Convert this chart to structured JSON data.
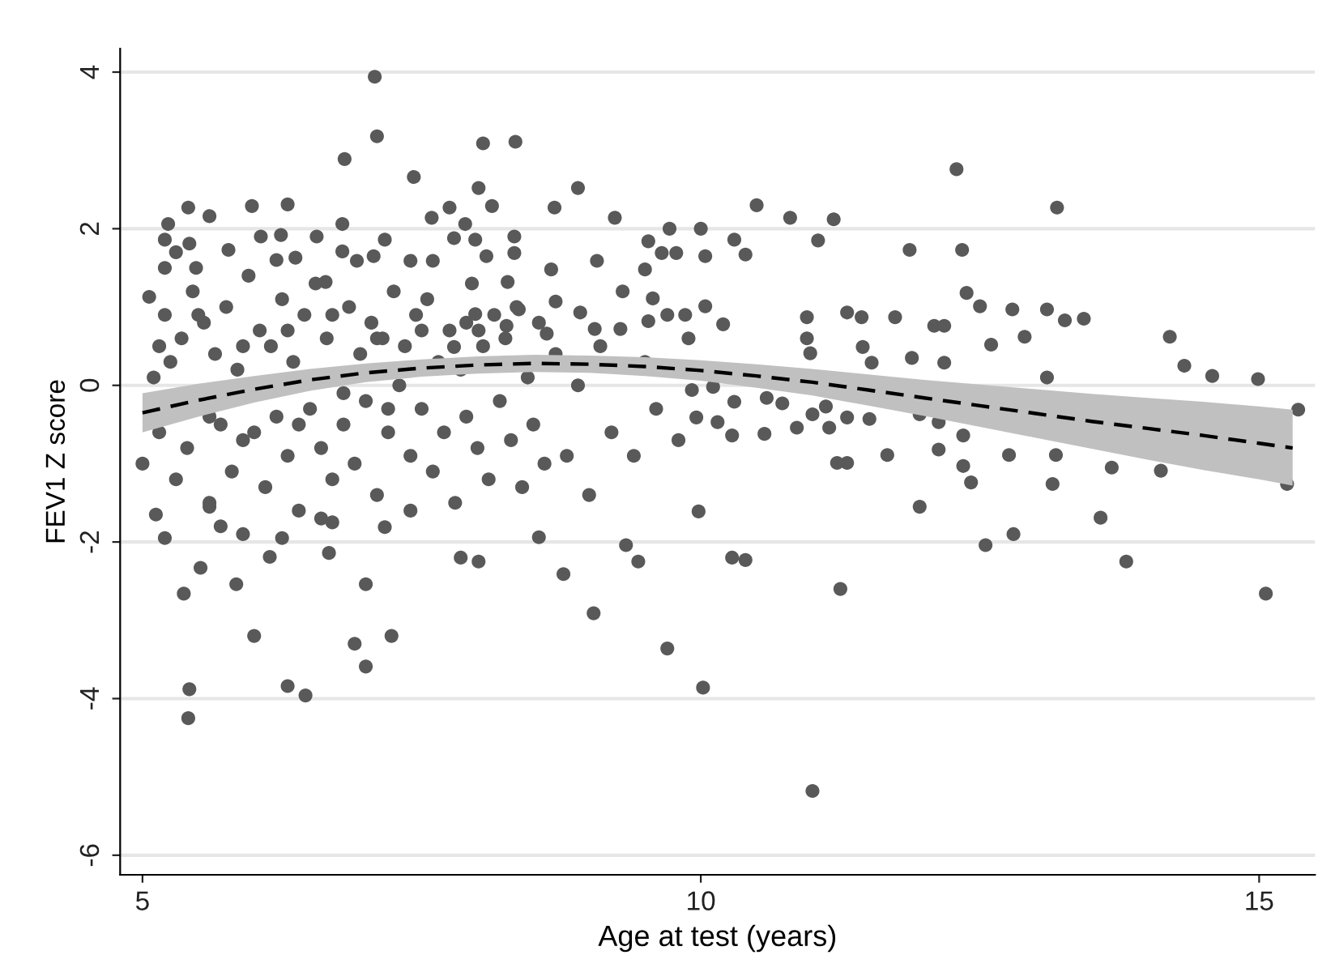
{
  "chart_data": {
    "type": "scatter",
    "xlabel": "Age at test (years)",
    "ylabel": "FEV1 Z score",
    "xlim": [
      4.8,
      15.5
    ],
    "ylim": [
      -6.25,
      4.3
    ],
    "xticks": [
      5,
      10,
      15
    ],
    "yticks": [
      -6,
      -4,
      -2,
      0,
      2,
      4
    ],
    "grid": "y",
    "legend": false,
    "series": [
      {
        "color": "#595959",
        "marker": "circle",
        "x": [
          7.08,
          7.1,
          8.05,
          8.34,
          6.81,
          7.43,
          8.9,
          12.29,
          13.19,
          12.34,
          11.0,
          5.41,
          5.42,
          6.3,
          6.46,
          7.0,
          6.9,
          7.23,
          6.0,
          9.7,
          10.02,
          9.04,
          11.25,
          5.37,
          7.0,
          15.06,
          13.81,
          12.55,
          12.8,
          13.58,
          11.96,
          9.98,
          15.25,
          10.28,
          10.4,
          9.44,
          9.33,
          8.77,
          7.85,
          8.01,
          8.55,
          7.17,
          6.67,
          6.14,
          5.52,
          5.84,
          11.87,
          10.5,
          10.8,
          11.19,
          10.3,
          10.0,
          10.04,
          9.78,
          10.4,
          11.05,
          12.38,
          12.5,
          12.79,
          13.1,
          13.26,
          13.43,
          14.2,
          14.33,
          14.58,
          14.99,
          15.35,
          12.6,
          12.9,
          13.1,
          10.95,
          10.95,
          10.98,
          11.31,
          11.44,
          11.74,
          12.09,
          12.18,
          11.45,
          11.53,
          11.89,
          12.18,
          9.86,
          10.04,
          10.2,
          9.89,
          9.92,
          10.11,
          10.3,
          10.59,
          10.73,
          9.96,
          10.15,
          10.28,
          10.57,
          10.86,
          11.0,
          11.15,
          11.31,
          11.51,
          11.12,
          11.96,
          12.13,
          12.13,
          12.35,
          12.35,
          11.67,
          11.22,
          11.31,
          12.76,
          13.18,
          13.68,
          14.12,
          12.42,
          13.15,
          5.41,
          5.6,
          5.98,
          6.3,
          5.23,
          5.2,
          5.42,
          5.77,
          5.2,
          5.48,
          5.06,
          6.06,
          6.24,
          6.56,
          6.79,
          6.79,
          6.37,
          6.64,
          7.17,
          7.07,
          6.92,
          7.4,
          7.6,
          7.59,
          7.75,
          8.01,
          8.13,
          7.89,
          7.79,
          7.98,
          8.08,
          8.33,
          8.33,
          8.69,
          8.66,
          9.07,
          9.23,
          9.72,
          9.53,
          9.65,
          9.5,
          9.57,
          8.92,
          9.05,
          9.28,
          9.53,
          8.62,
          8.7,
          8.27,
          8.37,
          7.98,
          8.01,
          7.79,
          8.26,
          5.0,
          5.1,
          5.15,
          5.2,
          5.25,
          5.3,
          5.35,
          5.4,
          5.45,
          5.55,
          5.6,
          5.65,
          5.7,
          5.75,
          5.8,
          5.85,
          5.9,
          5.95,
          6.05,
          6.1,
          6.15,
          6.2,
          6.25,
          6.3,
          6.35,
          6.4,
          6.45,
          6.5,
          6.55,
          6.6,
          6.65,
          6.7,
          6.8,
          6.85,
          6.9,
          6.95,
          7.0,
          7.05,
          7.1,
          7.15,
          7.2,
          7.25,
          7.3,
          7.35,
          7.4,
          7.45,
          7.5,
          7.55,
          7.6,
          7.65,
          7.7,
          7.75,
          7.8,
          7.85,
          7.9,
          7.95,
          8.0,
          8.05,
          8.1,
          8.15,
          8.2,
          8.25,
          8.3,
          8.35,
          8.4,
          8.45,
          8.5,
          8.55,
          8.6,
          8.7,
          8.8,
          8.9,
          9.0,
          9.1,
          9.2,
          9.3,
          9.4,
          9.5,
          9.6,
          9.7,
          9.8,
          5.3,
          5.7,
          6.2,
          6.6,
          7.4,
          5.15,
          5.5,
          5.9,
          6.3,
          6.7,
          7.1,
          7.5,
          7.9,
          5.6,
          6.0,
          6.4,
          6.8,
          7.2,
          5.2,
          5.12,
          5.6,
          5.9,
          6.25,
          6.7
        ],
        "values": [
          3.94,
          3.18,
          3.09,
          3.11,
          2.89,
          2.66,
          2.52,
          2.76,
          2.27,
          1.73,
          -5.18,
          -4.25,
          -3.88,
          -3.84,
          -3.96,
          -3.59,
          -3.3,
          -3.2,
          -3.2,
          -3.36,
          -3.86,
          -2.91,
          -2.6,
          -2.66,
          -2.54,
          -2.66,
          -2.25,
          -2.04,
          -1.9,
          -1.69,
          -1.55,
          -1.61,
          -1.26,
          -2.2,
          -2.23,
          -2.25,
          -2.04,
          -2.41,
          -2.2,
          -2.25,
          -1.94,
          -1.81,
          -2.14,
          -2.19,
          -2.33,
          -2.54,
          1.73,
          2.3,
          2.14,
          2.12,
          1.86,
          2.0,
          1.65,
          1.69,
          1.67,
          1.85,
          1.18,
          1.01,
          0.97,
          0.97,
          0.83,
          0.85,
          0.62,
          0.25,
          0.12,
          0.08,
          -0.31,
          0.52,
          0.62,
          0.1,
          0.87,
          0.6,
          0.41,
          0.93,
          0.87,
          0.87,
          0.76,
          0.76,
          0.49,
          0.29,
          0.35,
          0.29,
          0.9,
          1.01,
          0.78,
          0.6,
          -0.06,
          -0.02,
          -0.21,
          -0.16,
          -0.23,
          -0.41,
          -0.47,
          -0.64,
          -0.62,
          -0.54,
          -0.37,
          -0.54,
          -0.41,
          -0.43,
          -0.27,
          -0.37,
          -0.47,
          -0.82,
          -0.64,
          -1.03,
          -0.89,
          -0.99,
          -0.99,
          -0.89,
          -0.89,
          -1.05,
          -1.09,
          -1.24,
          -1.26,
          2.27,
          2.16,
          2.29,
          2.31,
          2.06,
          1.86,
          1.81,
          1.73,
          1.5,
          1.5,
          1.13,
          1.9,
          1.92,
          1.9,
          2.06,
          1.71,
          1.63,
          1.32,
          1.86,
          1.65,
          1.59,
          1.59,
          1.59,
          2.14,
          2.27,
          2.52,
          2.29,
          2.06,
          1.88,
          1.86,
          1.65,
          1.9,
          1.69,
          2.27,
          1.48,
          1.59,
          2.14,
          2.0,
          1.84,
          1.69,
          1.48,
          1.11,
          0.93,
          0.72,
          0.72,
          0.82,
          0.66,
          1.07,
          1.32,
          0.97,
          0.91,
          0.7,
          0.49,
          0.76,
          -1.0,
          0.1,
          -0.6,
          0.9,
          0.3,
          -1.2,
          0.6,
          -0.8,
          1.2,
          0.8,
          -1.5,
          0.4,
          -0.5,
          1.0,
          -1.1,
          0.2,
          -0.7,
          1.4,
          0.7,
          -1.3,
          0.5,
          -0.4,
          1.1,
          -0.9,
          0.3,
          -1.6,
          0.9,
          -0.3,
          1.3,
          -0.8,
          0.6,
          -1.2,
          -0.5,
          1.0,
          -1.0,
          0.4,
          -0.2,
          0.8,
          -1.4,
          0.6,
          -0.6,
          1.2,
          0.0,
          0.5,
          -0.9,
          0.9,
          -0.3,
          1.1,
          -1.1,
          0.3,
          -0.6,
          0.7,
          -1.5,
          0.2,
          -0.4,
          1.3,
          -0.8,
          0.5,
          -1.2,
          0.9,
          -0.2,
          0.6,
          -0.7,
          1.0,
          -1.3,
          0.1,
          -0.5,
          0.8,
          -1.0,
          0.4,
          -0.9,
          0.0,
          -1.4,
          0.5,
          -0.6,
          1.2,
          -0.9,
          0.3,
          -0.3,
          0.9,
          -0.7,
          1.7,
          -1.8,
          1.6,
          -1.7,
          -1.6,
          0.5,
          0.9,
          0.5,
          0.7,
          0.9,
          0.6,
          0.7,
          0.8,
          -0.4,
          -0.6,
          -0.5,
          -0.1,
          -0.3,
          -1.95,
          -1.65,
          -1.55,
          -1.9,
          -1.95,
          -1.75
        ]
      },
      {
        "type": "line",
        "color": "#000000",
        "line_style": "dashed",
        "x": [
          5,
          5.5,
          6,
          6.5,
          7,
          7.5,
          8,
          8.5,
          9,
          9.5,
          10,
          10.5,
          11,
          11.5,
          12,
          12.5,
          13,
          13.5,
          14,
          14.5,
          15,
          15.3
        ],
        "values": [
          -0.35,
          -0.19,
          -0.05,
          0.07,
          0.16,
          0.22,
          0.26,
          0.28,
          0.27,
          0.24,
          0.19,
          0.12,
          0.04,
          -0.06,
          -0.16,
          -0.26,
          -0.36,
          -0.46,
          -0.55,
          -0.64,
          -0.74,
          -0.8
        ],
        "lower": [
          -0.6,
          -0.4,
          -0.22,
          -0.07,
          0.04,
          0.11,
          0.15,
          0.17,
          0.16,
          0.12,
          0.06,
          -0.03,
          -0.13,
          -0.26,
          -0.39,
          -0.53,
          -0.67,
          -0.81,
          -0.95,
          -1.08,
          -1.2,
          -1.28
        ],
        "upper": [
          -0.1,
          0.02,
          0.12,
          0.21,
          0.28,
          0.33,
          0.37,
          0.39,
          0.38,
          0.36,
          0.32,
          0.27,
          0.21,
          0.14,
          0.07,
          0.01,
          -0.05,
          -0.11,
          -0.16,
          -0.21,
          -0.27,
          -0.31
        ]
      }
    ]
  }
}
